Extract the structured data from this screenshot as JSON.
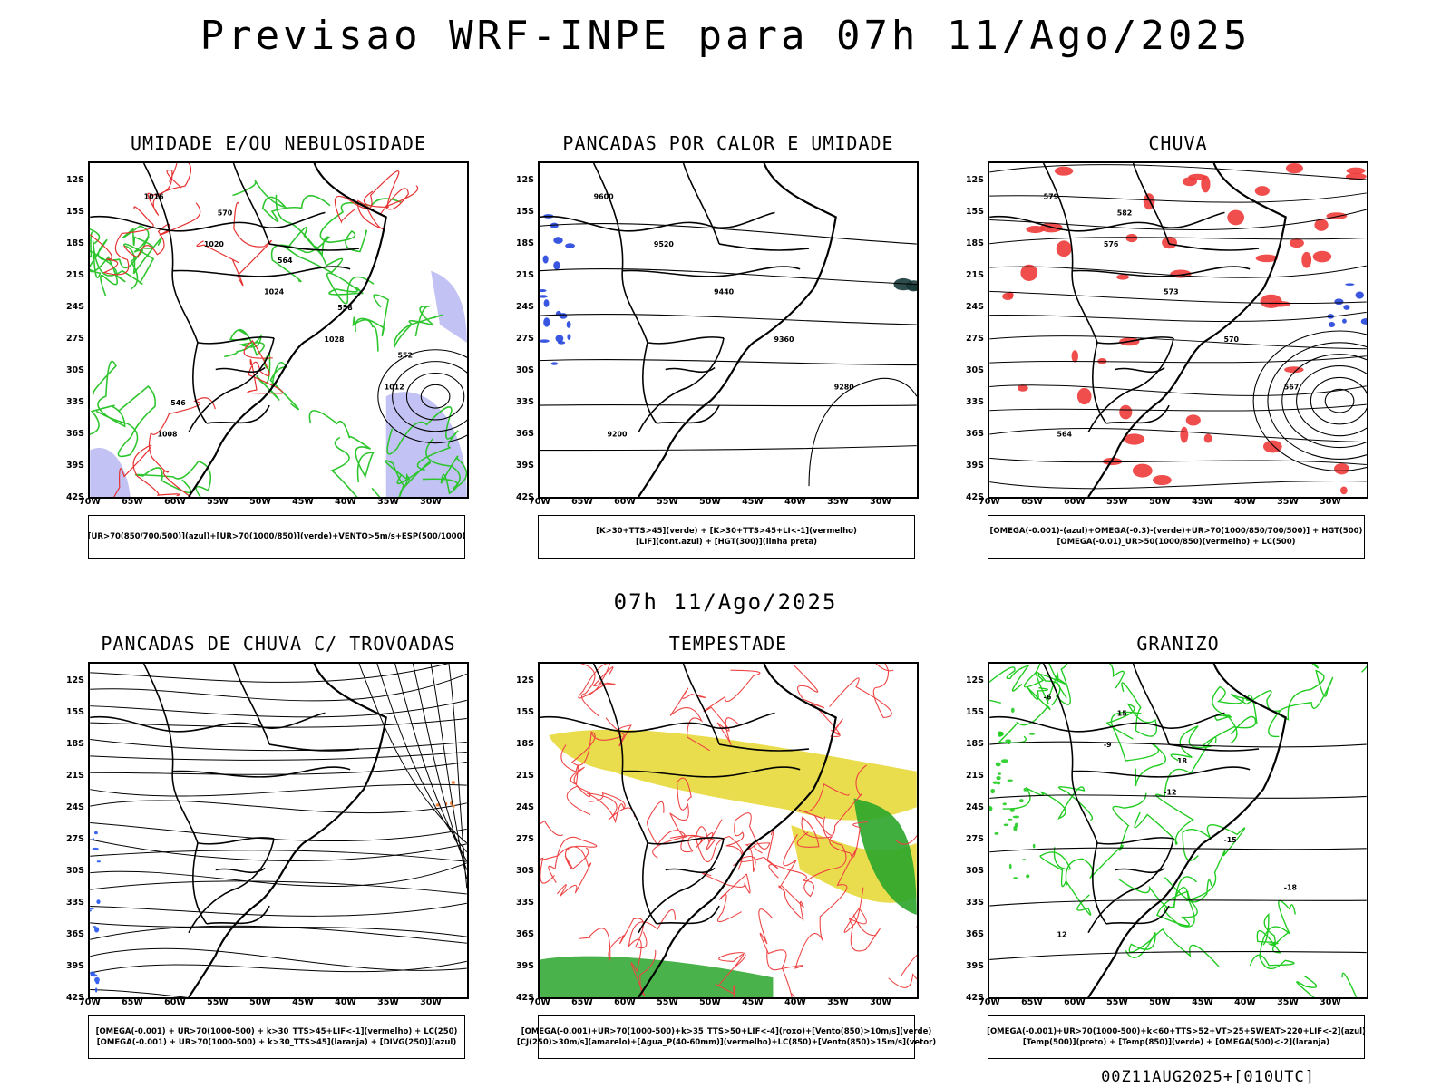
{
  "title": "Previsao WRF-INPE  para 07h 11/Ago/2025",
  "subtitle": "07h 11/Ago/2025",
  "footer": "00Z11AUG2025+[010UTC]",
  "axes": {
    "lat_ticks": [
      "12S",
      "15S",
      "18S",
      "21S",
      "24S",
      "27S",
      "30S",
      "33S",
      "36S",
      "39S",
      "42S"
    ],
    "lon_ticks": [
      "70W",
      "65W",
      "60W",
      "55W",
      "50W",
      "45W",
      "40W",
      "35W",
      "30W"
    ]
  },
  "panels": [
    {
      "title": "UMIDADE E/OU NEBULOSIDADE",
      "legend": [
        "[UR>70(850/700/500)](azul)+[UR>70(1000/850)](verde)+VENTO>5m/s+ESP(500/1000)"
      ],
      "labels": [
        "1016",
        "1020",
        "1024",
        "1028",
        "1012",
        "1008",
        "570",
        "564",
        "558",
        "552",
        "546"
      ],
      "colors": [
        "#2ec52e",
        "#e63030",
        "#9999ee"
      ]
    },
    {
      "title": "PANCADAS POR CALOR E UMIDADE",
      "legend": [
        "[K>30+TTS>45](verde) + [K>30+TTS>45+LI<-1](vermelho)",
        "[LIF](cont.azul) + [HGT(300)](linha preta)"
      ],
      "labels": [
        "9600",
        "9520",
        "9440",
        "9360",
        "9280",
        "9200"
      ],
      "colors": [
        "#2244dd",
        "#1a3a3a"
      ]
    },
    {
      "title": "CHUVA",
      "legend": [
        "[OMEGA(-0.001)-(azul)+OMEGA(-0.3)-(verde)+UR>70(1000/850/700/500)] + HGT(500)",
        "[OMEGA(-0.01)_UR>50(1000/850)(vermelho) + LC(500)"
      ],
      "labels": [
        "579",
        "576",
        "573",
        "570",
        "567",
        "564",
        "582"
      ],
      "colors": [
        "#ee3a3a",
        "#2244dd",
        "#2ec52e"
      ]
    },
    {
      "title": "PANCADAS DE CHUVA C/ TROVOADAS",
      "legend": [
        "[OMEGA(-0.001) + UR>70(1000-500) + k>30_TTS>45+LIF<-1](vermelho) + LC(250)",
        "[OMEGA(-0.001) + UR>70(1000-500) + k>30_TTS>45](laranja) + [DIVG(250)](azul)"
      ],
      "labels": [],
      "colors": [
        "#2255ee",
        "#ee7722"
      ]
    },
    {
      "title": "TEMPESTADE",
      "legend": [
        "[OMEGA(-0.001)+UR>70(1000-500)+k>35_TTS>50+LIF<-4](roxo)+[Vento(850)>10m/s](verde)",
        "[CJ(250)>30m/s](amarelo)+[Agua_P(40-60mm)](vermelho)+LC(850)+[Vento(850)>15m/s](vetor)"
      ],
      "labels": [],
      "colors": [
        "#e8d93a",
        "#2aa52a",
        "#ee4444"
      ]
    },
    {
      "title": "GRANIZO",
      "legend": [
        "[OMEGA(-0.001)+UR>70(1000-500)+k<60+TTS>52+VT>25+SWEAT>220+LIF<-2](azul)",
        "[Temp(500)](preto) + [Temp(850)](verde) + [OMEGA(500)<-2](laranja)"
      ],
      "labels": [
        "-6",
        "-9",
        "-12",
        "-15",
        "-18",
        "12",
        "15",
        "18"
      ],
      "colors": [
        "#22cc22",
        "#ee7722"
      ]
    }
  ]
}
